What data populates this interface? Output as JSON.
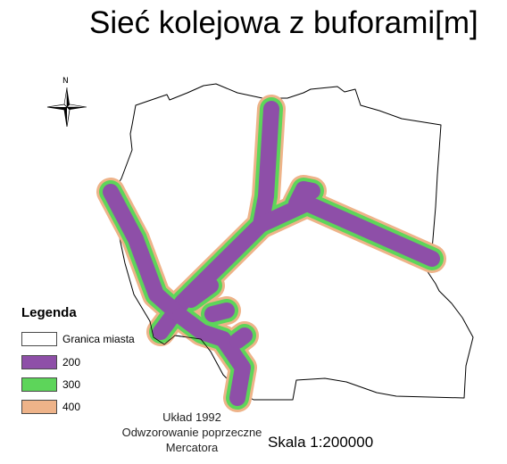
{
  "title": "Sieć kolejowa z buforami[m]",
  "north_label": "N",
  "legend": {
    "title": "Legenda",
    "items": [
      {
        "label": "Granica miasta",
        "color": "#ffffff"
      },
      {
        "label": "200",
        "color": "#8e4fa8"
      },
      {
        "label": "300",
        "color": "#5dd55a"
      },
      {
        "label": "400",
        "color": "#eeb389"
      }
    ]
  },
  "info_lines": [
    "Układ 1992",
    "Odwzorowanie poprzeczne",
    "Mercatora"
  ],
  "scale": "Skala 1:200000",
  "colors": {
    "buffer_200": "#8e4fa8",
    "buffer_300": "#5dd55a",
    "buffer_400": "#eeb389",
    "boundary": "#000000"
  }
}
